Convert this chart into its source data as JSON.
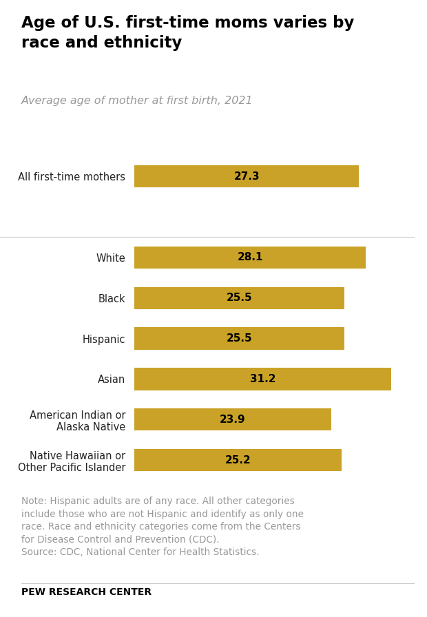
{
  "title": "Age of U.S. first-time moms varies by\nrace and ethnicity",
  "subtitle": "Average age of mother at first birth, 2021",
  "categories": [
    "All first-time mothers",
    "",
    "White",
    "Black",
    "Hispanic",
    "Asian",
    "American Indian or\nAlaska Native",
    "Native Hawaiian or\nOther Pacific Islander"
  ],
  "values": [
    27.3,
    null,
    28.1,
    25.5,
    25.5,
    31.2,
    23.9,
    25.2
  ],
  "bar_color": "#C9A227",
  "text_color": "#000000",
  "label_color": "#222222",
  "subtitle_color": "#999999",
  "note_color": "#999999",
  "note_text": "Note: Hispanic adults are of any race. All other categories\ninclude those who are not Hispanic and identify as only one\nrace. Race and ethnicity categories come from the Centers\nfor Disease Control and Prevention (CDC).\nSource: CDC, National Center for Health Statistics.",
  "footer_text": "PEW RESEARCH CENTER",
  "background_color": "#ffffff",
  "xlim": [
    0,
    34
  ],
  "bar_height": 0.55
}
